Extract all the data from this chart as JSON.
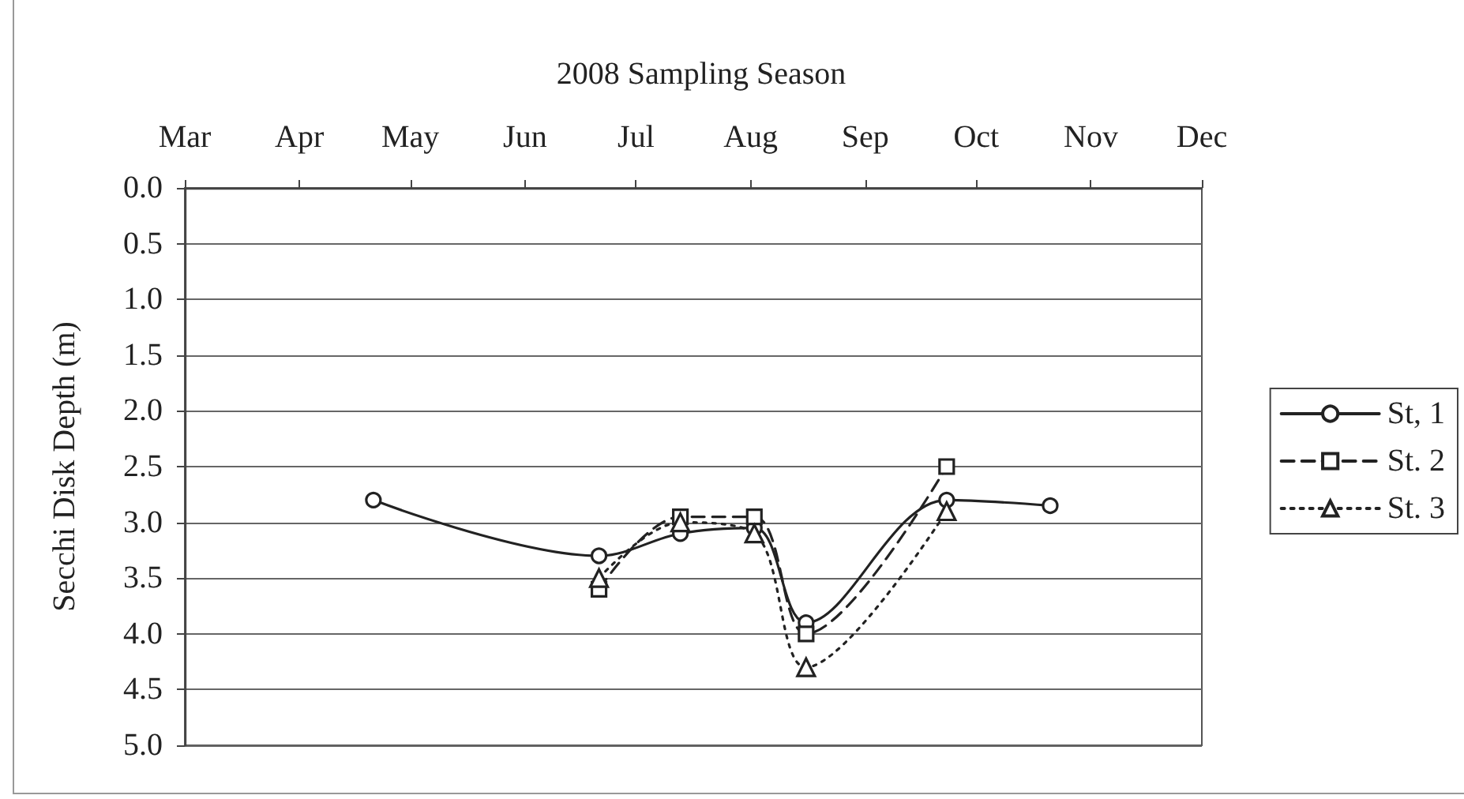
{
  "chart_data": {
    "type": "line",
    "title": "2008 Sampling Season",
    "ylabel": "Secchi Disk Depth (m)",
    "xlim": [
      "2008-03-01",
      "2008-12-01"
    ],
    "xticks": [
      {
        "value": "2008-03-01",
        "label": "Mar"
      },
      {
        "value": "2008-04-01",
        "label": "Apr"
      },
      {
        "value": "2008-05-01",
        "label": "May"
      },
      {
        "value": "2008-06-01",
        "label": "Jun"
      },
      {
        "value": "2008-07-01",
        "label": "Jul"
      },
      {
        "value": "2008-08-01",
        "label": "Aug"
      },
      {
        "value": "2008-09-01",
        "label": "Sep"
      },
      {
        "value": "2008-10-01",
        "label": "Oct"
      },
      {
        "value": "2008-11-01",
        "label": "Nov"
      },
      {
        "value": "2008-12-01",
        "label": "Dec"
      }
    ],
    "ylim": [
      5.0,
      0.0
    ],
    "yticks": [
      {
        "value": 0,
        "label": "0.0"
      },
      {
        "value": 0.5,
        "label": "0.5"
      },
      {
        "value": 1,
        "label": "1.0"
      },
      {
        "value": 1.5,
        "label": "1.5"
      },
      {
        "value": 2,
        "label": "2.0"
      },
      {
        "value": 2.5,
        "label": "2.5"
      },
      {
        "value": 3,
        "label": "3.0"
      },
      {
        "value": 3.5,
        "label": "3.5"
      },
      {
        "value": 4,
        "label": "4.0"
      },
      {
        "value": 4.5,
        "label": "4.5"
      },
      {
        "value": 5,
        "label": "5.0"
      }
    ],
    "grid": "y",
    "legend": "right",
    "series": [
      {
        "name": "St, 1",
        "color": "#222222",
        "marker": "circle",
        "line_style": "solid",
        "x": [
          "2008-04-21",
          "2008-06-21",
          "2008-07-13",
          "2008-08-02",
          "2008-08-16",
          "2008-09-23",
          "2008-10-21"
        ],
        "values": [
          2.8,
          3.3,
          3.1,
          3.05,
          3.9,
          2.8,
          2.85
        ]
      },
      {
        "name": "St. 2",
        "color": "#222222",
        "marker": "square",
        "line_style": "dashed",
        "x": [
          "2008-06-21",
          "2008-07-13",
          "2008-08-02",
          "2008-08-16",
          "2008-09-23"
        ],
        "values": [
          3.6,
          2.95,
          2.95,
          4.0,
          2.5
        ]
      },
      {
        "name": "St. 3",
        "color": "#222222",
        "marker": "triangle",
        "line_style": "dotted",
        "x": [
          "2008-06-21",
          "2008-07-13",
          "2008-08-02",
          "2008-08-16",
          "2008-09-23"
        ],
        "values": [
          3.5,
          3.0,
          3.1,
          4.3,
          2.9
        ]
      }
    ]
  }
}
